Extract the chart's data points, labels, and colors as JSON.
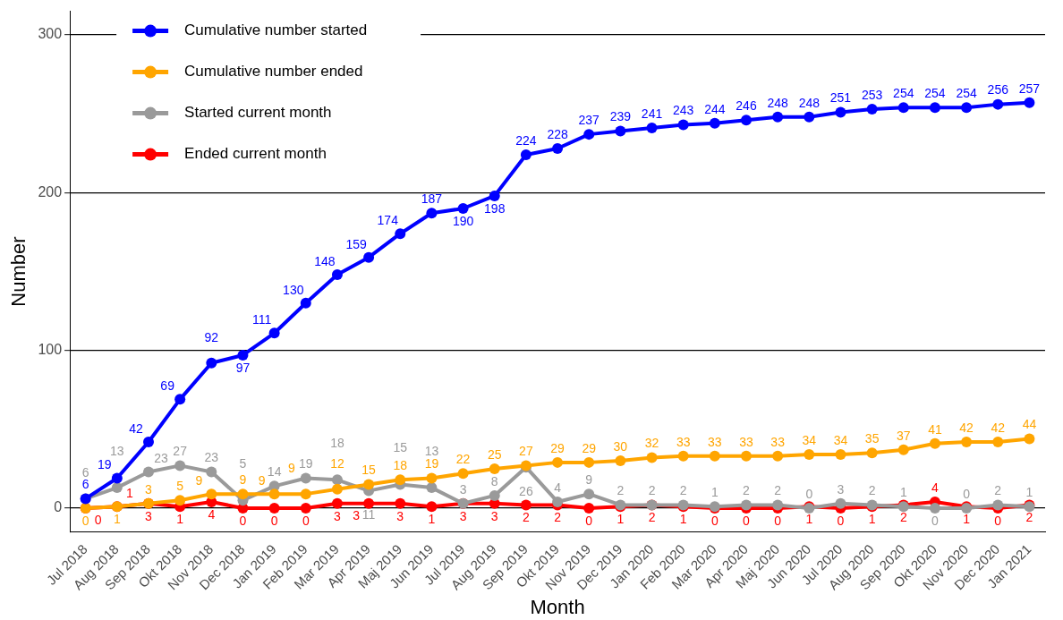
{
  "chart_data": {
    "type": "line",
    "xlabel": "Month",
    "ylabel": "Number",
    "categories": [
      "Jul 2018",
      "Aug 2018",
      "Sep 2018",
      "Okt 2018",
      "Nov 2018",
      "Dec 2018",
      "Jan 2019",
      "Feb 2019",
      "Mar 2019",
      "Apr 2019",
      "Maj 2019",
      "Jun 2019",
      "Jul 2019",
      "Aug 2019",
      "Sep 2019",
      "Okt 2019",
      "Nov 2019",
      "Dec 2019",
      "Jan 2020",
      "Feb 2020",
      "Mar 2020",
      "Apr 2020",
      "Maj 2020",
      "Jun 2020",
      "Jul 2020",
      "Aug 2020",
      "Sep 2020",
      "Okt 2020",
      "Nov 2020",
      "Dec 2020",
      "Jan 2021"
    ],
    "series": [
      {
        "name": "Cumulative number started",
        "color": "#0000ff",
        "values": [
          6,
          19,
          42,
          69,
          92,
          97,
          111,
          130,
          148,
          159,
          174,
          187,
          190,
          198,
          224,
          228,
          237,
          239,
          241,
          243,
          244,
          246,
          248,
          248,
          251,
          253,
          254,
          254,
          254,
          256,
          257
        ]
      },
      {
        "name": "Cumulative number ended",
        "color": "#ffa500",
        "values": [
          0,
          1,
          3,
          5,
          9,
          9,
          9,
          9,
          12,
          15,
          18,
          19,
          22,
          25,
          27,
          29,
          29,
          30,
          32,
          33,
          33,
          33,
          33,
          34,
          34,
          35,
          37,
          41,
          42,
          42,
          44
        ]
      },
      {
        "name": "Started current month",
        "color": "#9a9a9a",
        "values": [
          6,
          13,
          23,
          27,
          23,
          5,
          14,
          19,
          18,
          11,
          15,
          13,
          3,
          8,
          26,
          4,
          9,
          2,
          2,
          2,
          1,
          2,
          2,
          0,
          3,
          2,
          1,
          0,
          0,
          2,
          1
        ]
      },
      {
        "name": "Ended current month",
        "color": "#ff0000",
        "values": [
          0,
          1,
          3,
          1,
          4,
          0,
          0,
          0,
          3,
          3,
          3,
          1,
          3,
          3,
          2,
          2,
          0,
          1,
          2,
          1,
          0,
          0,
          0,
          1,
          0,
          1,
          2,
          4,
          1,
          0,
          2
        ]
      }
    ],
    "ylim": [
      -15,
      315
    ],
    "yticks": [
      0,
      100,
      200,
      300
    ],
    "grid": "y",
    "legend": "top left",
    "marker": "circle",
    "line_style": "solid",
    "data_labels": true
  }
}
